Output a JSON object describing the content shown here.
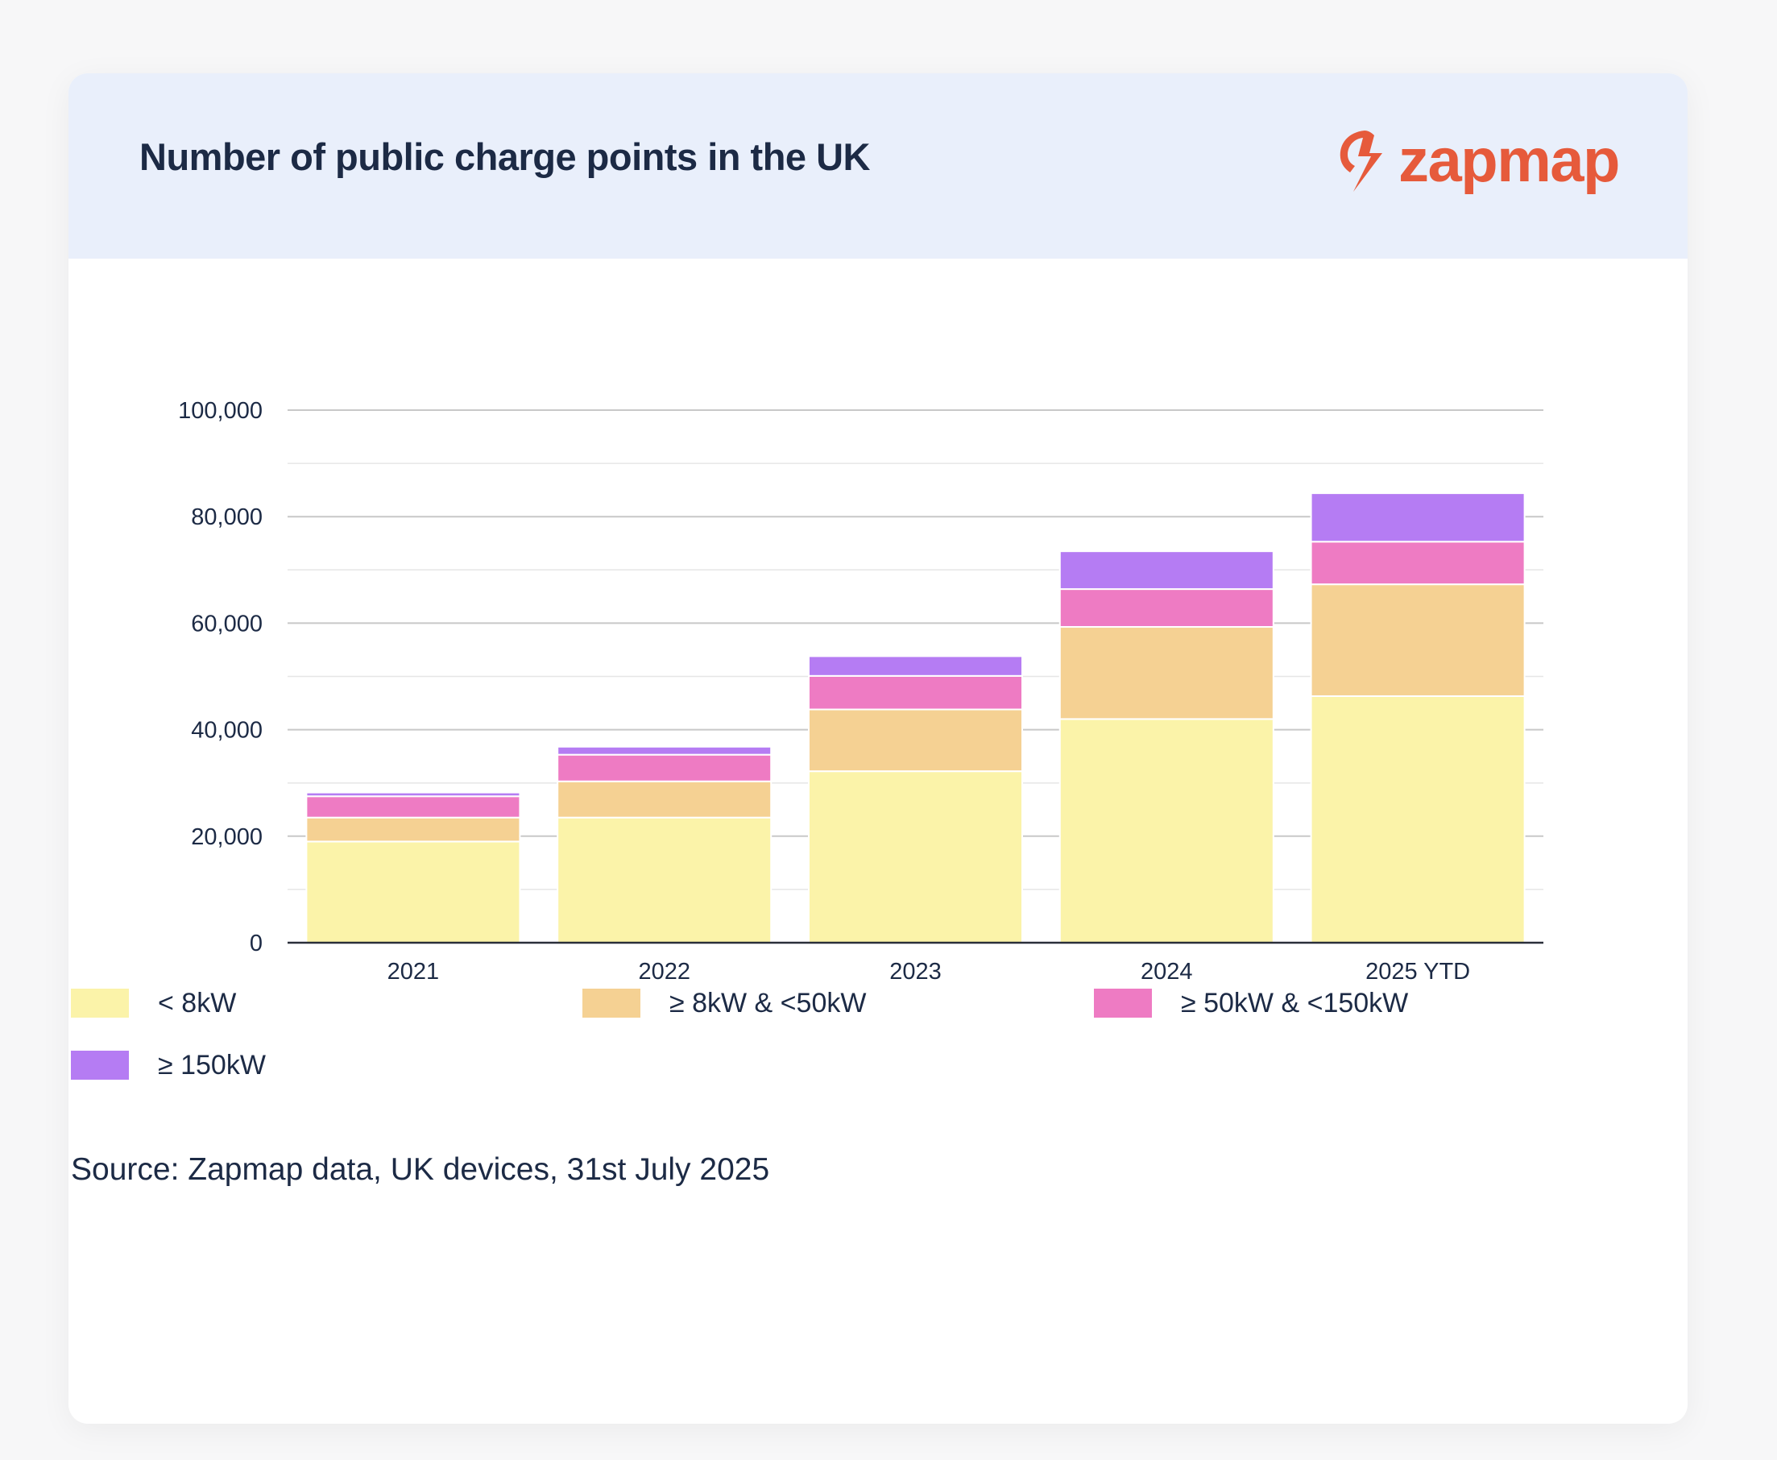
{
  "header": {
    "title": "Number of public charge points in the UK",
    "logo_text": "zapmap",
    "logo_icon": "zapmap-lightning-icon"
  },
  "colors": {
    "header_bg": "#e9effb",
    "brand": "#e65a3b",
    "text": "#1c2a45"
  },
  "chart_data": {
    "type": "bar",
    "stacked": true,
    "categories": [
      "2021",
      "2022",
      "2023",
      "2024",
      "2025 YTD"
    ],
    "series": [
      {
        "name": "< 8kW",
        "color": "#fbf3a9",
        "values": [
          19000,
          23500,
          32200,
          42000,
          46300
        ]
      },
      {
        "name": "≥ 8kW & <50kW",
        "color": "#f5d193",
        "values": [
          4500,
          6800,
          11600,
          17300,
          21000
        ]
      },
      {
        "name": "≥ 50kW & <150kW",
        "color": "#ee7bc3",
        "values": [
          4000,
          5000,
          6300,
          7100,
          8000
        ]
      },
      {
        "name": "≥ 150kW",
        "color": "#b57cf3",
        "values": [
          700,
          1500,
          3700,
          7100,
          9100
        ]
      }
    ],
    "title": "Number of public charge points in the UK",
    "xlabel": "",
    "ylabel": "",
    "ylim": [
      0,
      100000
    ],
    "yticks": [
      "0",
      "20,000",
      "40,000",
      "60,000",
      "80,000",
      "100,000"
    ],
    "ytick_values": [
      0,
      20000,
      40000,
      60000,
      80000,
      100000
    ],
    "grid": true,
    "legend_position": "bottom"
  },
  "source": "Source: Zapmap data, UK devices, 31st July 2025"
}
